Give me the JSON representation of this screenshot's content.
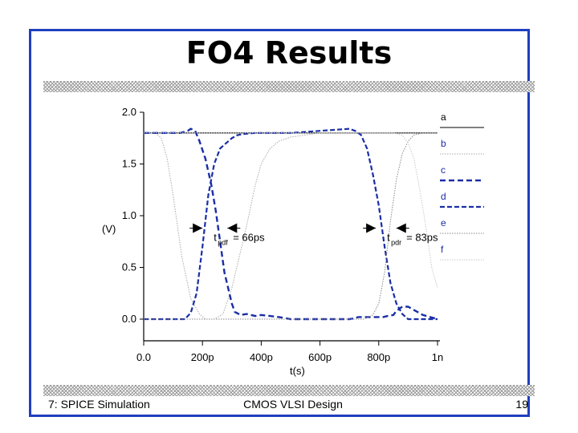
{
  "slide": {
    "title": "FO4 Results",
    "footer_left": "7: SPICE Simulation",
    "footer_center": "CMOS VLSI Design",
    "footer_right": "19"
  },
  "chart_data": {
    "type": "line",
    "xlabel": "t(s)",
    "ylabel": "(V)",
    "xlim": [
      0,
      1000
    ],
    "ylim": [
      0,
      2.0
    ],
    "x_tick_labels": [
      "0.0",
      "200p",
      "400p",
      "600p",
      "800p",
      "1n"
    ],
    "x_tick_values": [
      0,
      200,
      400,
      600,
      800,
      1000
    ],
    "y_tick_labels": [
      "0.0",
      "0.5",
      "1.0",
      "1.5",
      "2.0"
    ],
    "y_tick_values": [
      0,
      0.5,
      1.0,
      1.5,
      2.0
    ],
    "grid": false,
    "legend_position": "right",
    "series": [
      {
        "name": "a",
        "color": "#000000",
        "style": "solid-thin",
        "x": [
          0,
          13,
          75,
          600,
          660,
          720,
          1000
        ],
        "y": [
          1.8,
          1.8,
          1.8,
          1.8,
          1.8,
          1.8,
          1.8
        ]
      },
      {
        "name": "b",
        "color": "#aaaaaa",
        "style": "dotted-thin",
        "x": [
          0,
          20,
          40,
          60,
          80,
          100,
          130,
          160,
          190,
          210,
          240,
          270,
          300,
          350,
          380,
          400,
          430,
          460,
          500,
          600,
          700,
          750,
          800,
          830,
          850,
          870,
          900,
          950,
          980,
          1000
        ],
        "y": [
          1.8,
          1.8,
          1.8,
          1.75,
          1.55,
          1.2,
          0.6,
          0.2,
          0.05,
          0.0,
          0.0,
          0.05,
          0.3,
          0.9,
          1.3,
          1.5,
          1.65,
          1.72,
          1.76,
          1.8,
          1.8,
          1.8,
          1.8,
          1.8,
          1.8,
          1.8,
          1.8,
          1.8,
          1.8,
          1.8
        ]
      },
      {
        "name": "c",
        "color": "#1a2ea6",
        "style": "dash-thick",
        "x": [
          0,
          100,
          125,
          150,
          160,
          175,
          190,
          210,
          230,
          245,
          260,
          275,
          300,
          310,
          330,
          350,
          380,
          400,
          430,
          460,
          500,
          600,
          700,
          720,
          730,
          740,
          750,
          770,
          790,
          800,
          815,
          830,
          850,
          860,
          880,
          900,
          950,
          1000
        ],
        "y": [
          1.8,
          1.8,
          1.8,
          1.82,
          1.84,
          1.82,
          1.72,
          1.55,
          1.3,
          1.05,
          0.75,
          0.45,
          0.15,
          0.07,
          0.04,
          0.05,
          0.03,
          0.04,
          0.03,
          0.02,
          0.0,
          0.0,
          0.0,
          0.01,
          0.02,
          0.02,
          0.02,
          0.02,
          0.02,
          0.02,
          0.02,
          0.03,
          0.04,
          0.08,
          0.12,
          0.12,
          0.04,
          0.0
        ]
      },
      {
        "name": "d",
        "color": "#1a2ea6",
        "style": "dash-medium",
        "x": [
          0,
          50,
          100,
          120,
          140,
          160,
          180,
          200,
          220,
          240,
          260,
          280,
          300,
          320,
          340,
          380,
          400,
          500,
          600,
          700,
          720,
          740,
          760,
          780,
          800,
          820,
          840,
          860,
          880,
          900,
          950,
          1000
        ],
        "y": [
          0.0,
          0.0,
          0.0,
          0.0,
          0.0,
          0.06,
          0.25,
          0.7,
          1.2,
          1.5,
          1.65,
          1.7,
          1.75,
          1.78,
          1.79,
          1.8,
          1.8,
          1.8,
          1.82,
          1.84,
          1.82,
          1.78,
          1.65,
          1.4,
          1.1,
          0.7,
          0.35,
          0.15,
          0.05,
          0.0,
          0.0,
          0.0
        ]
      },
      {
        "name": "e",
        "color": "#8a8a8a",
        "style": "dotted-thin",
        "x": [
          0,
          50,
          100,
          150,
          200,
          250,
          300,
          400,
          500,
          600,
          700,
          750,
          780,
          800,
          820,
          840,
          860,
          880,
          900,
          920,
          950,
          1000
        ],
        "y": [
          0.0,
          0.0,
          0.0,
          0.0,
          0.0,
          0.0,
          0.0,
          0.0,
          0.0,
          0.0,
          0.0,
          0.0,
          0.04,
          0.15,
          0.45,
          0.95,
          1.35,
          1.6,
          1.72,
          1.78,
          1.8,
          1.8
        ]
      },
      {
        "name": "f",
        "color": "#c8c8c8",
        "style": "dotted-thin",
        "x": [
          0,
          50,
          100,
          200,
          300,
          400,
          500,
          600,
          700,
          800,
          850,
          880,
          900,
          920,
          940,
          960,
          980,
          1000
        ],
        "y": [
          1.8,
          1.8,
          1.8,
          1.8,
          1.8,
          1.8,
          1.8,
          1.8,
          1.8,
          1.8,
          1.8,
          1.78,
          1.7,
          1.55,
          1.25,
          0.9,
          0.5,
          0.3
        ]
      }
    ],
    "annotations": [
      {
        "label_main": "t",
        "label_sub": "pdf",
        "label_value": "= 66ps",
        "arrow_left_x": 200,
        "arrow_right_x": 285,
        "y": 0.88
      },
      {
        "label_main": "t",
        "label_sub": "pdr",
        "label_value": "= 83ps",
        "arrow_left_x": 790,
        "arrow_right_x": 860,
        "y": 0.88
      }
    ]
  }
}
